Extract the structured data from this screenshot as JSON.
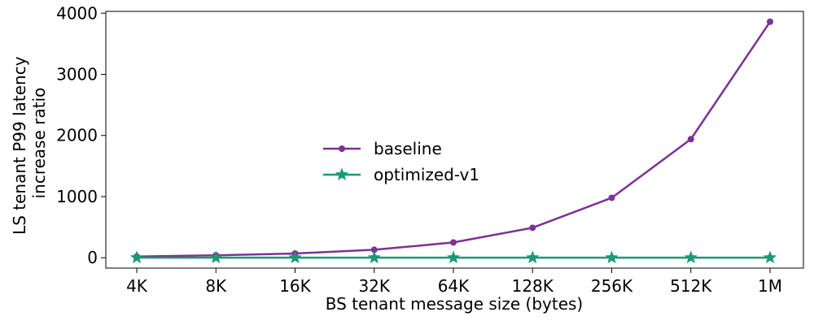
{
  "chart_data": {
    "type": "line",
    "xlabel": "BS tenant message size (bytes)",
    "ylabel_lines": [
      "LS tenant P99 latency",
      "increase ratio"
    ],
    "categories": [
      "4K",
      "8K",
      "16K",
      "32K",
      "64K",
      "128K",
      "256K",
      "512K",
      "1M"
    ],
    "ylim": [
      -170,
      4030
    ],
    "yticks": [
      0,
      1000,
      2000,
      3000,
      4000
    ],
    "grid": false,
    "legend_position": "center",
    "series": [
      {
        "name": "baseline",
        "color": "#7b3294",
        "marker": "circle",
        "values": [
          20,
          40,
          70,
          130,
          250,
          490,
          980,
          1940,
          3860
        ]
      },
      {
        "name": "optimized-v1",
        "color": "#1a9a76",
        "marker": "star",
        "values": [
          1,
          1,
          1,
          1,
          1,
          1,
          1,
          1,
          1
        ]
      }
    ]
  }
}
